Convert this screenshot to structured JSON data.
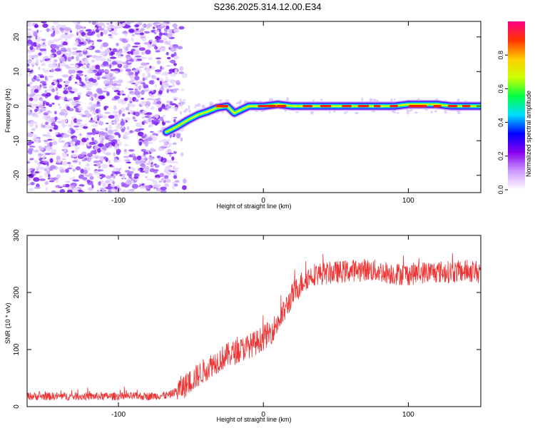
{
  "figure": {
    "title": "S236.2025.314.12.00.E34"
  },
  "chart_data": [
    {
      "type": "heatmap",
      "title": "S236.2025.314.12.00.E34",
      "xlabel": "Height of straight line (km)",
      "ylabel": "Frequency (Hz)",
      "xlim": [
        -163,
        150
      ],
      "ylim": [
        -25,
        24.5
      ],
      "xticks": [
        -100,
        0,
        100
      ],
      "xtick_labels": [
        "-100",
        "0",
        "100"
      ],
      "yticks": [
        -20,
        -10,
        0,
        10,
        20
      ],
      "ytick_labels": [
        "-20",
        "-10",
        "0",
        "10",
        "20"
      ],
      "noise_region_x": [
        -163,
        -60
      ],
      "ridge": {
        "x": [
          -67,
          -60,
          -52,
          -45,
          -38,
          -32,
          -25,
          -20,
          -15,
          -10,
          0,
          10,
          20,
          30,
          40,
          50,
          60,
          70,
          80,
          90,
          100,
          110,
          120,
          130,
          150
        ],
        "y": [
          -7.5,
          -6,
          -4,
          -2.5,
          -1.5,
          -0.5,
          0,
          -2,
          -1,
          0,
          0,
          0.5,
          0,
          0,
          0,
          0,
          0,
          0,
          0,
          0,
          0.5,
          0.5,
          0.5,
          0,
          0
        ]
      },
      "colorbar": {
        "label": "Normalized spectral amplitude",
        "range": [
          0,
          1
        ],
        "ticks": [
          0.0,
          0.2,
          0.4,
          0.6,
          0.8
        ],
        "tick_labels": [
          "0.0",
          "0.2",
          "0.4",
          "0.6",
          "0.8"
        ],
        "colors": [
          "#ffffff",
          "#cc99ff",
          "#8800ee",
          "#0000ff",
          "#00ddff",
          "#00ff44",
          "#ccff00",
          "#ffcc00",
          "#ff3300",
          "#ff0088"
        ]
      }
    },
    {
      "type": "line",
      "xlabel": "Height of straight line (km)",
      "ylabel": "SNR (10 * v/v)",
      "xlim": [
        -163,
        150
      ],
      "ylim": [
        0,
        300
      ],
      "xticks": [
        -100,
        0,
        100
      ],
      "xtick_labels": [
        "-100",
        "0",
        "100"
      ],
      "yticks": [
        0,
        100,
        200,
        300
      ],
      "ytick_labels": [
        "0",
        "100",
        "200",
        "300"
      ],
      "color": "#ee3333",
      "series": [
        {
          "name": "SNR",
          "x": [
            -163,
            -120,
            -80,
            -65,
            -55,
            -45,
            -35,
            -25,
            -15,
            -5,
            5,
            12,
            20,
            28,
            35,
            50,
            60,
            70,
            80,
            90,
            100,
            110,
            120,
            130,
            140,
            150
          ],
          "y": [
            18,
            18,
            18,
            20,
            35,
            55,
            75,
            90,
            100,
            112,
            130,
            155,
            195,
            222,
            232,
            235,
            238,
            240,
            237,
            233,
            232,
            235,
            236,
            236,
            237,
            237
          ]
        }
      ]
    }
  ]
}
